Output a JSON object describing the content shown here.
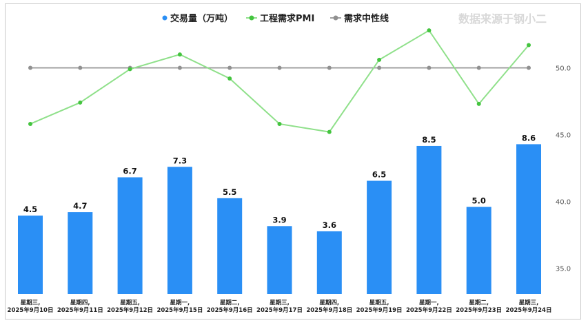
{
  "source_note": "数据来源于钢小二",
  "colors": {
    "bar": "#2a8ff5",
    "pmi_line": "#8fe08a",
    "pmi_point": "#44c43f",
    "midline": "#a0a0a0",
    "midline_point": "#909090"
  },
  "chart_data": {
    "type": "bar+line",
    "categories": [
      [
        "星期三,",
        "2025年9月10日"
      ],
      [
        "星期四,",
        "2025年9月11日"
      ],
      [
        "星期五,",
        "2025年9月12日"
      ],
      [
        "星期一,",
        "2025年9月15日"
      ],
      [
        "星期二,",
        "2025年9月16日"
      ],
      [
        "星期三,",
        "2025年9月17日"
      ],
      [
        "星期四,",
        "2025年9月18日"
      ],
      [
        "星期五,",
        "2025年9月19日"
      ],
      [
        "星期一,",
        "2025年9月22日"
      ],
      [
        "星期二,",
        "2025年9月23日"
      ],
      [
        "星期三,",
        "2025年9月24日"
      ]
    ],
    "series": [
      {
        "name": "交易量（万吨）",
        "type": "bar",
        "axis": "left",
        "values": [
          4.5,
          4.7,
          6.7,
          7.3,
          5.5,
          3.9,
          3.6,
          6.5,
          8.5,
          5.0,
          8.6
        ],
        "labels": [
          "4.5",
          "4.7",
          "6.7",
          "7.3",
          "5.5",
          "3.9",
          "3.6",
          "6.5",
          "8.5",
          "5.0",
          "8.6"
        ]
      },
      {
        "name": "工程需求PMI",
        "type": "line",
        "axis": "right",
        "values": [
          45.8,
          47.4,
          49.9,
          51.0,
          49.2,
          45.8,
          45.2,
          50.6,
          52.8,
          47.3,
          51.7
        ]
      },
      {
        "name": "需求中性线",
        "type": "line",
        "axis": "right",
        "values": [
          50,
          50,
          50,
          50,
          50,
          50,
          50,
          50,
          50,
          50,
          50
        ]
      }
    ],
    "left_axis": {
      "min": 0,
      "max": 12.64,
      "visible": false
    },
    "right_axis": {
      "min": 32.5,
      "max": 54.0,
      "ticks": [
        35.0,
        40.0,
        45.0,
        50.0
      ],
      "tick_labels": [
        "35.0",
        "40.0",
        "45.0",
        "50.0"
      ]
    },
    "legend_position": "top-center",
    "grid": false
  }
}
